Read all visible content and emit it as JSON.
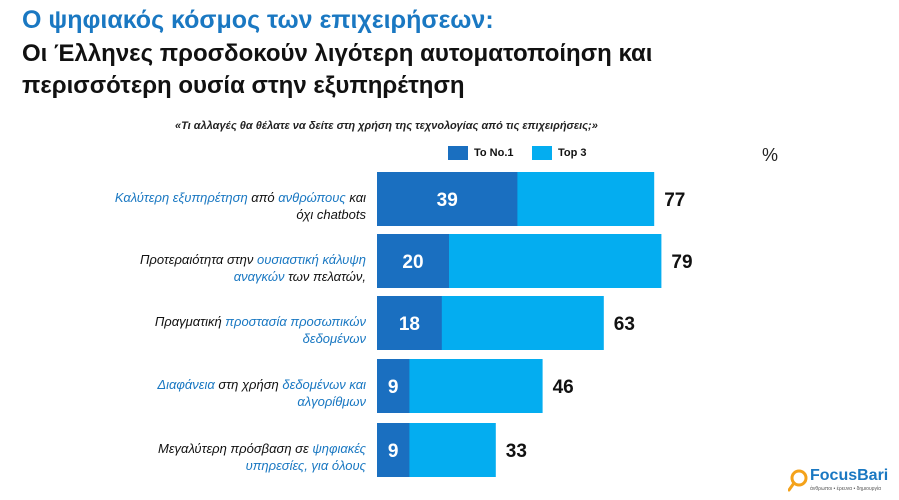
{
  "header": {
    "title": "Ο ψηφιακός κόσμος των επιχειρήσεων:",
    "subtitle_line1": "Οι Έλληνες προσδοκούν λιγότερη αυτοματοποίηση και",
    "subtitle_line2": "περισσότερη ουσία στην εξυπηρέτηση",
    "question": "«Τι αλλαγές θα θέλατε να δείτε στη χρήση της τεχνολογίας από τις επιχειρήσεις;»"
  },
  "unit_label": "%",
  "logo": {
    "name": "FocusBari",
    "tagline": "άνθρωποι • έρευνα • δημιουργία"
  },
  "colors": {
    "no1": "#1a6fc0",
    "top3": "#04adf0",
    "highlight": "#1a78c2"
  },
  "chart_data": {
    "type": "bar",
    "orientation": "horizontal",
    "grid": false,
    "legend_position": "top",
    "xlim": [
      0,
      100
    ],
    "categories": [
      "Καλύτερη εξυπηρέτηση από ανθρώπους και όχι chatbots",
      "Προτεραιότητα στην ουσιαστική κάλυψη αναγκών των πελατών,",
      "Πραγματική προστασία προσωπικών δεδομένων",
      "Διαφάνεια στη χρήση δεδομένων και αλγορίθμων",
      "Μεγαλύτερη πρόσβαση σε ψηφιακές υπηρεσίες, για όλους"
    ],
    "category_segments": [
      [
        {
          "t": "Καλύτερη εξυπηρέτηση",
          "h": true
        },
        {
          "t": " από ",
          "h": false
        },
        {
          "t": "ανθρώπους",
          "h": true
        },
        {
          "t": " και",
          "h": false
        },
        {
          "br": true
        },
        {
          "t": "όχι chatbots",
          "h": false
        }
      ],
      [
        {
          "t": "Προτεραιότητα στην ",
          "h": false
        },
        {
          "t": "ουσιαστική κάλυψη",
          "h": true
        },
        {
          "br": true
        },
        {
          "t": "αναγκών",
          "h": true
        },
        {
          "t": " των πελατών,",
          "h": false
        }
      ],
      [
        {
          "t": "Πραγματική ",
          "h": false
        },
        {
          "t": "προστασία προσωπικών",
          "h": true
        },
        {
          "br": true
        },
        {
          "t": "δεδομένων",
          "h": true
        }
      ],
      [
        {
          "t": "Διαφάνεια",
          "h": true
        },
        {
          "t": " στη χρήση ",
          "h": false
        },
        {
          "t": "δεδομένων και",
          "h": true
        },
        {
          "br": true
        },
        {
          "t": "αλγορίθμων",
          "h": true
        }
      ],
      [
        {
          "t": "Μεγαλύτερη πρόσβαση σε ",
          "h": false
        },
        {
          "t": "ψηφιακές",
          "h": true
        },
        {
          "br": true
        },
        {
          "t": "υπηρεσίες, για όλους",
          "h": true
        }
      ]
    ],
    "series": [
      {
        "name": "Το Νο.1",
        "values": [
          39,
          20,
          18,
          9,
          9
        ]
      },
      {
        "name": "Top 3",
        "values": [
          77,
          79,
          63,
          46,
          33
        ]
      }
    ]
  }
}
